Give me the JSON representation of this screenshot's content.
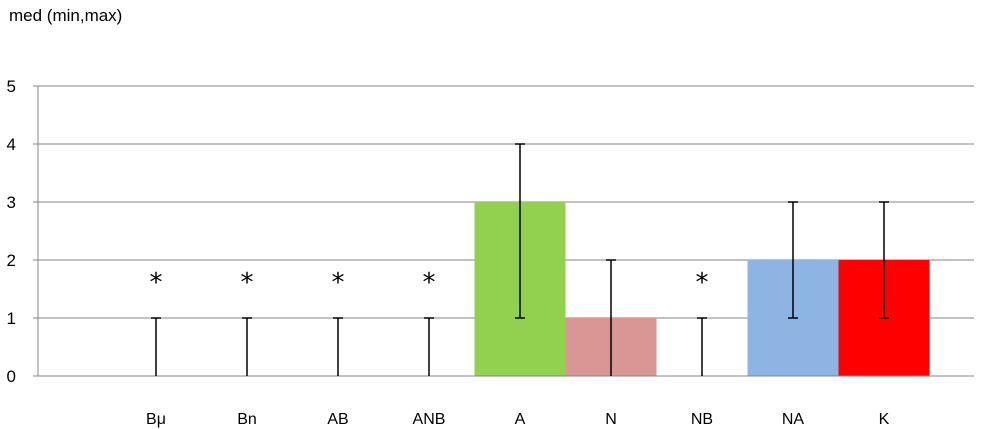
{
  "chart_data": {
    "type": "bar",
    "title": "med (min,max)",
    "xlabel": "",
    "ylabel": "",
    "ylim": [
      0,
      5
    ],
    "yticks": [
      0,
      1,
      2,
      3,
      4,
      5
    ],
    "grid": true,
    "legend": "none",
    "categories": [
      "Bμ",
      "Bn",
      "AB",
      "ANB",
      "A",
      "N",
      "NB",
      "NA",
      "K"
    ],
    "values": [
      0,
      0,
      0,
      0,
      3,
      1,
      0,
      2,
      2
    ],
    "min": [
      0,
      0,
      0,
      0,
      1,
      0,
      0,
      1,
      1
    ],
    "max": [
      1,
      1,
      1,
      1,
      4,
      2,
      1,
      3,
      3
    ],
    "annotations": [
      "*",
      "*",
      "*",
      "*",
      "",
      "",
      "*",
      "",
      ""
    ],
    "colors": [
      "#ffffff",
      "#ffffff",
      "#ffffff",
      "#ffffff",
      "#92d050",
      "#d99694",
      "#ffffff",
      "#8eb4e3",
      "#ff0000"
    ]
  }
}
